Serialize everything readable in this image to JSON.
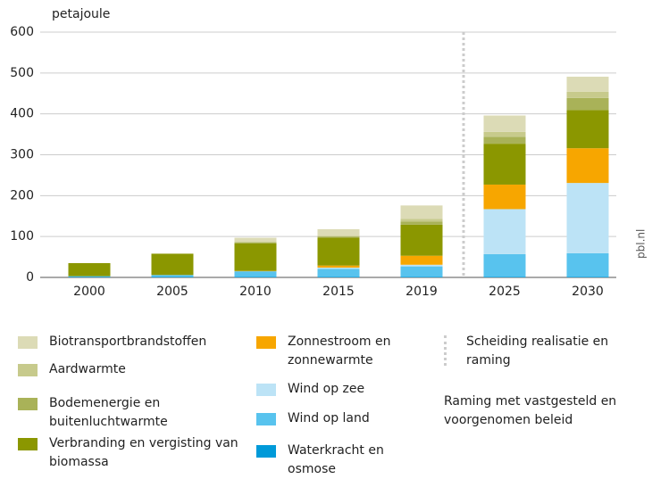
{
  "chart_data": {
    "type": "stacked_bar",
    "y_label": "petajoule",
    "categories": [
      "2000",
      "2005",
      "2010",
      "2015",
      "2019",
      "2025",
      "2030"
    ],
    "ylim": [
      0,
      600
    ],
    "yticks": [
      0,
      100,
      200,
      300,
      400,
      500,
      600
    ],
    "grid": true,
    "series": [
      {
        "name": "Waterkracht en osmose",
        "color": "#009ad9",
        "values": [
          1,
          1,
          1,
          1,
          1,
          1,
          1
        ]
      },
      {
        "name": "Wind op land",
        "color": "#58c3ee",
        "values": [
          2,
          5,
          14,
          20,
          26,
          56,
          58
        ]
      },
      {
        "name": "Wind op zee",
        "color": "#bce3f6",
        "values": [
          0,
          0,
          0,
          3,
          4,
          110,
          172
        ]
      },
      {
        "name": "Zonnestroom en zonnewarmte",
        "color": "#f7a600",
        "values": [
          0,
          0,
          1,
          5,
          22,
          60,
          85
        ]
      },
      {
        "name": "Verbranding en vergisting van biomassa",
        "color": "#8b9700",
        "values": [
          32,
          52,
          67,
          68,
          76,
          100,
          93
        ]
      },
      {
        "name": "Bodemenergie en buitenluchtwarmte",
        "color": "#a9b258",
        "values": [
          0,
          0,
          3,
          3,
          8,
          17,
          30
        ]
      },
      {
        "name": "Aardwarmte",
        "color": "#c7ca8c",
        "values": [
          0,
          0,
          1,
          2,
          6,
          12,
          15
        ]
      },
      {
        "name": "Biotransportbrandstoffen",
        "color": "#dcdbb6",
        "values": [
          0,
          0,
          10,
          16,
          33,
          40,
          37
        ]
      }
    ],
    "divider_legend": "Scheiding realisatie en raming",
    "note": "Raming met vastgesteld en voorgenomen beleid",
    "source": "pbl.nl"
  }
}
